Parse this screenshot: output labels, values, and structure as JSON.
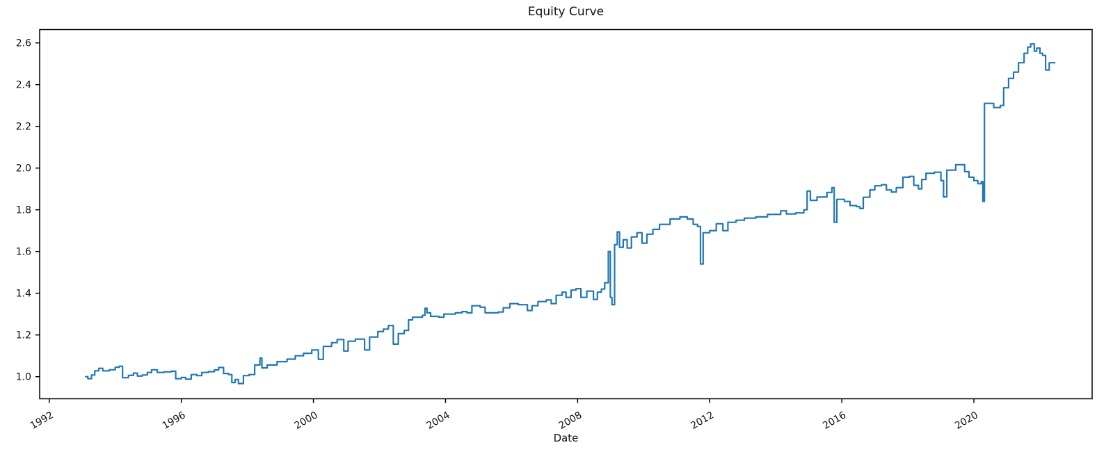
{
  "chart_data": {
    "type": "line",
    "title": "Equity Curve",
    "xlabel": "Date",
    "ylabel": "",
    "legend": "none",
    "grid": false,
    "line_style": "step-after",
    "colors": {
      "line": "#1f77b4",
      "spine": "#000000",
      "text": "#111111",
      "background": "#ffffff"
    },
    "xlim": [
      1991.71,
      2023.58
    ],
    "ylim": [
      0.894,
      2.664
    ],
    "xticks": [
      {
        "v": 1992,
        "label": "1992"
      },
      {
        "v": 1996,
        "label": "1996"
      },
      {
        "v": 2000,
        "label": "2000"
      },
      {
        "v": 2004,
        "label": "2004"
      },
      {
        "v": 2008,
        "label": "2008"
      },
      {
        "v": 2012,
        "label": "2012"
      },
      {
        "v": 2016,
        "label": "2016"
      },
      {
        "v": 2020,
        "label": "2020"
      }
    ],
    "yticks": [
      {
        "v": 1.0,
        "label": "1.0"
      },
      {
        "v": 1.2,
        "label": "1.2"
      },
      {
        "v": 1.4,
        "label": "1.4"
      },
      {
        "v": 1.6,
        "label": "1.6"
      },
      {
        "v": 1.8,
        "label": "1.8"
      },
      {
        "v": 2.0,
        "label": "2.0"
      },
      {
        "v": 2.2,
        "label": "2.2"
      },
      {
        "v": 2.4,
        "label": "2.4"
      },
      {
        "v": 2.6,
        "label": "2.6"
      }
    ],
    "series": [
      {
        "name": "equity",
        "points": [
          [
            1993.1,
            1.0
          ],
          [
            1993.17,
            0.99
          ],
          [
            1993.28,
            1.008
          ],
          [
            1993.38,
            1.028
          ],
          [
            1993.5,
            1.04
          ],
          [
            1993.62,
            1.028
          ],
          [
            1993.82,
            1.033
          ],
          [
            1994.0,
            1.045
          ],
          [
            1994.12,
            1.05
          ],
          [
            1994.22,
            0.995
          ],
          [
            1994.4,
            1.006
          ],
          [
            1994.55,
            1.017
          ],
          [
            1994.67,
            1.003
          ],
          [
            1994.82,
            1.008
          ],
          [
            1994.97,
            1.02
          ],
          [
            1995.1,
            1.033
          ],
          [
            1995.27,
            1.02
          ],
          [
            1995.47,
            1.023
          ],
          [
            1995.7,
            1.026
          ],
          [
            1995.83,
            0.99
          ],
          [
            1996.0,
            0.996
          ],
          [
            1996.13,
            0.988
          ],
          [
            1996.3,
            1.01
          ],
          [
            1996.47,
            1.005
          ],
          [
            1996.62,
            1.02
          ],
          [
            1996.82,
            1.024
          ],
          [
            1997.0,
            1.032
          ],
          [
            1997.13,
            1.044
          ],
          [
            1997.28,
            1.015
          ],
          [
            1997.43,
            1.01
          ],
          [
            1997.53,
            0.972
          ],
          [
            1997.63,
            0.986
          ],
          [
            1997.73,
            0.967
          ],
          [
            1997.88,
            1.005
          ],
          [
            1998.05,
            1.01
          ],
          [
            1998.22,
            1.056
          ],
          [
            1998.38,
            1.089
          ],
          [
            1998.44,
            1.042
          ],
          [
            1998.6,
            1.056
          ],
          [
            1998.9,
            1.072
          ],
          [
            1999.2,
            1.084
          ],
          [
            1999.45,
            1.1
          ],
          [
            1999.7,
            1.112
          ],
          [
            1999.95,
            1.128
          ],
          [
            2000.15,
            1.083
          ],
          [
            2000.3,
            1.145
          ],
          [
            2000.55,
            1.163
          ],
          [
            2000.72,
            1.178
          ],
          [
            2000.92,
            1.123
          ],
          [
            2001.05,
            1.17
          ],
          [
            2001.27,
            1.18
          ],
          [
            2001.55,
            1.128
          ],
          [
            2001.7,
            1.19
          ],
          [
            2001.95,
            1.216
          ],
          [
            2002.12,
            1.228
          ],
          [
            2002.27,
            1.245
          ],
          [
            2002.42,
            1.156
          ],
          [
            2002.57,
            1.206
          ],
          [
            2002.75,
            1.222
          ],
          [
            2002.88,
            1.272
          ],
          [
            2003.0,
            1.285
          ],
          [
            2003.3,
            1.294
          ],
          [
            2003.38,
            1.328
          ],
          [
            2003.44,
            1.306
          ],
          [
            2003.55,
            1.289
          ],
          [
            2003.8,
            1.285
          ],
          [
            2003.95,
            1.3
          ],
          [
            2004.3,
            1.306
          ],
          [
            2004.5,
            1.312
          ],
          [
            2004.65,
            1.306
          ],
          [
            2004.8,
            1.34
          ],
          [
            2005.05,
            1.333
          ],
          [
            2005.2,
            1.306
          ],
          [
            2005.6,
            1.31
          ],
          [
            2005.75,
            1.33
          ],
          [
            2005.95,
            1.35
          ],
          [
            2006.2,
            1.345
          ],
          [
            2006.48,
            1.317
          ],
          [
            2006.62,
            1.34
          ],
          [
            2006.8,
            1.36
          ],
          [
            2007.05,
            1.368
          ],
          [
            2007.2,
            1.35
          ],
          [
            2007.35,
            1.39
          ],
          [
            2007.53,
            1.405
          ],
          [
            2007.65,
            1.38
          ],
          [
            2007.8,
            1.415
          ],
          [
            2007.95,
            1.422
          ],
          [
            2008.1,
            1.38
          ],
          [
            2008.28,
            1.41
          ],
          [
            2008.48,
            1.37
          ],
          [
            2008.6,
            1.405
          ],
          [
            2008.72,
            1.42
          ],
          [
            2008.82,
            1.45
          ],
          [
            2008.93,
            1.6
          ],
          [
            2008.99,
            1.38
          ],
          [
            2009.04,
            1.345
          ],
          [
            2009.12,
            1.633
          ],
          [
            2009.2,
            1.694
          ],
          [
            2009.27,
            1.62
          ],
          [
            2009.38,
            1.656
          ],
          [
            2009.5,
            1.617
          ],
          [
            2009.63,
            1.67
          ],
          [
            2009.8,
            1.69
          ],
          [
            2009.95,
            1.64
          ],
          [
            2010.1,
            1.683
          ],
          [
            2010.28,
            1.706
          ],
          [
            2010.48,
            1.73
          ],
          [
            2010.8,
            1.756
          ],
          [
            2011.1,
            1.766
          ],
          [
            2011.32,
            1.756
          ],
          [
            2011.5,
            1.73
          ],
          [
            2011.63,
            1.72
          ],
          [
            2011.72,
            1.54
          ],
          [
            2011.8,
            1.69
          ],
          [
            2012.0,
            1.7
          ],
          [
            2012.2,
            1.733
          ],
          [
            2012.4,
            1.7
          ],
          [
            2012.55,
            1.74
          ],
          [
            2012.8,
            1.75
          ],
          [
            2013.05,
            1.76
          ],
          [
            2013.4,
            1.766
          ],
          [
            2013.75,
            1.778
          ],
          [
            2014.15,
            1.795
          ],
          [
            2014.32,
            1.78
          ],
          [
            2014.6,
            1.785
          ],
          [
            2014.85,
            1.8
          ],
          [
            2014.95,
            1.89
          ],
          [
            2015.05,
            1.845
          ],
          [
            2015.25,
            1.861
          ],
          [
            2015.55,
            1.883
          ],
          [
            2015.7,
            1.906
          ],
          [
            2015.77,
            1.74
          ],
          [
            2015.85,
            1.85
          ],
          [
            2016.08,
            1.84
          ],
          [
            2016.25,
            1.82
          ],
          [
            2016.45,
            1.815
          ],
          [
            2016.55,
            1.806
          ],
          [
            2016.65,
            1.86
          ],
          [
            2016.85,
            1.895
          ],
          [
            2017.0,
            1.915
          ],
          [
            2017.2,
            1.92
          ],
          [
            2017.35,
            1.895
          ],
          [
            2017.5,
            1.885
          ],
          [
            2017.65,
            1.906
          ],
          [
            2017.85,
            1.956
          ],
          [
            2018.05,
            1.96
          ],
          [
            2018.18,
            1.917
          ],
          [
            2018.32,
            1.9
          ],
          [
            2018.42,
            1.945
          ],
          [
            2018.55,
            1.975
          ],
          [
            2018.8,
            1.98
          ],
          [
            2019.0,
            1.94
          ],
          [
            2019.08,
            1.862
          ],
          [
            2019.18,
            1.99
          ],
          [
            2019.45,
            2.016
          ],
          [
            2019.72,
            1.983
          ],
          [
            2019.85,
            1.956
          ],
          [
            2020.0,
            1.94
          ],
          [
            2020.12,
            1.925
          ],
          [
            2020.22,
            1.935
          ],
          [
            2020.27,
            1.84
          ],
          [
            2020.32,
            2.31
          ],
          [
            2020.6,
            2.29
          ],
          [
            2020.8,
            2.3
          ],
          [
            2020.9,
            2.385
          ],
          [
            2021.05,
            2.43
          ],
          [
            2021.2,
            2.46
          ],
          [
            2021.35,
            2.505
          ],
          [
            2021.52,
            2.55
          ],
          [
            2021.63,
            2.58
          ],
          [
            2021.72,
            2.595
          ],
          [
            2021.83,
            2.56
          ],
          [
            2021.9,
            2.575
          ],
          [
            2022.0,
            2.55
          ],
          [
            2022.08,
            2.54
          ],
          [
            2022.17,
            2.47
          ],
          [
            2022.28,
            2.505
          ],
          [
            2022.45,
            2.505
          ]
        ]
      }
    ]
  }
}
